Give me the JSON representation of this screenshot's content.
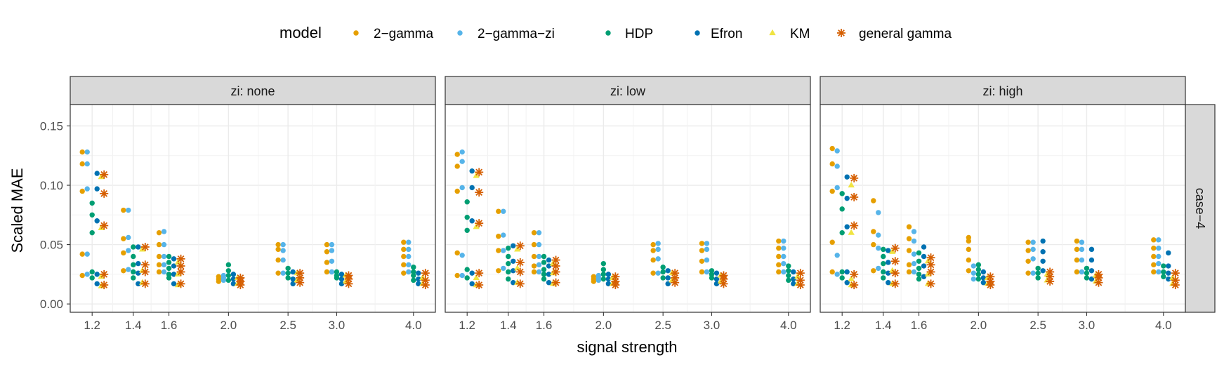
{
  "chart_data": {
    "type": "scatter",
    "xlabel": "signal strength",
    "ylabel": "Scaled MAE",
    "x_ticks": [
      "1.2",
      "1.4",
      "1.6",
      "2.0",
      "2.5",
      "3.0",
      "4.0"
    ],
    "y_ticks": [
      "0.00",
      "0.05",
      "0.10",
      "0.15"
    ],
    "ylim": [
      -0.007,
      0.168
    ],
    "grid": true,
    "legend": {
      "title": "model",
      "placement": "top",
      "entries": [
        "2−gamma",
        "2−gamma−zi",
        "HDP",
        "Efron",
        "KM",
        "general gamma"
      ]
    },
    "row_strip": "case−4",
    "series_colors": {
      "2-gamma": "#E69F00",
      "2-gamma-zi": "#56B4E9",
      "HDP": "#009E73",
      "Efron": "#0072B2",
      "KM": "#F0E442",
      "general gamma": "#D55E00"
    },
    "panels": [
      {
        "label": "zi: none",
        "points": {
          "1.2": {
            "2-gamma": [
              0.128,
              0.118,
              0.095,
              0.042,
              0.024
            ],
            "2-gamma-zi": [
              0.128,
              0.118,
              0.097,
              0.042,
              0.025
            ],
            "HDP": [
              0.085,
              0.075,
              0.06,
              0.027,
              0.022
            ],
            "Efron": [
              0.11,
              0.097,
              0.07,
              0.025,
              0.017
            ],
            "KM": [
              0.107,
              0.064,
              0.023,
              0.015
            ],
            "general gamma": [
              0.109,
              0.093,
              0.066,
              0.025,
              0.016
            ]
          },
          "1.4": {
            "2-gamma": [
              0.079,
              0.055,
              0.043,
              0.028
            ],
            "2-gamma-zi": [
              0.079,
              0.056,
              0.045,
              0.029
            ],
            "HDP": [
              0.048,
              0.04,
              0.033,
              0.027,
              0.022
            ],
            "Efron": [
              0.048,
              0.034,
              0.026,
              0.017
            ],
            "KM": [
              0.046,
              0.028,
              0.018
            ],
            "general gamma": [
              0.048,
              0.033,
              0.027,
              0.017
            ]
          },
          "1.6": {
            "2-gamma": [
              0.06,
              0.05,
              0.04,
              0.033,
              0.027
            ],
            "2-gamma-zi": [
              0.061,
              0.05,
              0.04,
              0.033,
              0.027
            ],
            "HDP": [
              0.04,
              0.035,
              0.03,
              0.025,
              0.022
            ],
            "Efron": [
              0.038,
              0.032,
              0.025,
              0.017
            ],
            "KM": [
              0.035,
              0.025,
              0.016
            ],
            "general gamma": [
              0.038,
              0.032,
              0.027,
              0.017
            ]
          },
          "2.0": {
            "2-gamma": [
              0.023,
              0.021,
              0.019
            ],
            "2-gamma-zi": [
              0.024,
              0.022,
              0.02
            ],
            "HDP": [
              0.033,
              0.028,
              0.024,
              0.02
            ],
            "Efron": [
              0.025,
              0.021,
              0.017
            ],
            "KM": [
              0.022,
              0.017
            ],
            "general gamma": [
              0.022,
              0.019,
              0.016
            ]
          },
          "2.5": {
            "2-gamma": [
              0.05,
              0.046,
              0.037,
              0.026
            ],
            "2-gamma-zi": [
              0.05,
              0.045,
              0.037,
              0.026
            ],
            "HDP": [
              0.03,
              0.026,
              0.022
            ],
            "Efron": [
              0.027,
              0.021,
              0.017
            ],
            "KM": [
              0.026,
              0.02
            ],
            "general gamma": [
              0.026,
              0.022,
              0.018
            ]
          },
          "3.0": {
            "2-gamma": [
              0.05,
              0.044,
              0.035,
              0.027
            ],
            "2-gamma-zi": [
              0.05,
              0.045,
              0.036,
              0.027
            ],
            "HDP": [
              0.027,
              0.024,
              0.022
            ],
            "Efron": [
              0.025,
              0.021,
              0.017
            ],
            "KM": [
              0.024,
              0.019
            ],
            "general gamma": [
              0.024,
              0.021,
              0.017
            ]
          },
          "4.0": {
            "2-gamma": [
              0.052,
              0.046,
              0.04,
              0.033,
              0.026
            ],
            "2-gamma-zi": [
              0.052,
              0.046,
              0.04,
              0.033,
              0.027
            ],
            "HDP": [
              0.031,
              0.027,
              0.024,
              0.02
            ],
            "Efron": [
              0.026,
              0.021,
              0.017
            ],
            "KM": [
              0.022,
              0.017
            ],
            "general gamma": [
              0.026,
              0.02,
              0.016
            ]
          }
        }
      },
      {
        "label": "zi: low",
        "points": {
          "1.2": {
            "2-gamma": [
              0.126,
              0.116,
              0.095,
              0.043,
              0.024
            ],
            "2-gamma-zi": [
              0.128,
              0.12,
              0.098,
              0.041,
              0.024
            ],
            "HDP": [
              0.086,
              0.073,
              0.062,
              0.029,
              0.022
            ],
            "Efron": [
              0.112,
              0.098,
              0.07,
              0.026,
              0.017
            ],
            "KM": [
              0.108,
              0.065,
              0.022,
              0.016
            ],
            "general gamma": [
              0.111,
              0.094,
              0.068,
              0.026,
              0.016
            ]
          },
          "1.4": {
            "2-gamma": [
              0.078,
              0.057,
              0.045,
              0.028
            ],
            "2-gamma-zi": [
              0.078,
              0.058,
              0.045,
              0.03
            ],
            "HDP": [
              0.047,
              0.04,
              0.034,
              0.027,
              0.021
            ],
            "Efron": [
              0.049,
              0.036,
              0.028,
              0.018
            ],
            "KM": [
              0.046,
              0.03,
              0.018
            ],
            "general gamma": [
              0.049,
              0.035,
              0.027,
              0.017
            ]
          },
          "1.6": {
            "2-gamma": [
              0.06,
              0.05,
              0.04,
              0.032,
              0.027
            ],
            "2-gamma-zi": [
              0.06,
              0.05,
              0.04,
              0.033,
              0.027
            ],
            "HDP": [
              0.04,
              0.035,
              0.029,
              0.025,
              0.021
            ],
            "Efron": [
              0.037,
              0.032,
              0.025,
              0.018
            ],
            "KM": [
              0.034,
              0.026,
              0.017
            ],
            "general gamma": [
              0.037,
              0.032,
              0.027,
              0.018
            ]
          },
          "2.0": {
            "2-gamma": [
              0.023,
              0.021,
              0.019
            ],
            "2-gamma-zi": [
              0.024,
              0.022,
              0.02
            ],
            "HDP": [
              0.034,
              0.029,
              0.025,
              0.021
            ],
            "Efron": [
              0.025,
              0.021,
              0.017
            ],
            "KM": [
              0.022,
              0.017
            ],
            "general gamma": [
              0.023,
              0.019,
              0.016
            ]
          },
          "2.5": {
            "2-gamma": [
              0.05,
              0.045,
              0.037,
              0.026
            ],
            "2-gamma-zi": [
              0.051,
              0.046,
              0.038,
              0.026
            ],
            "HDP": [
              0.031,
              0.027,
              0.022
            ],
            "Efron": [
              0.028,
              0.022,
              0.017
            ],
            "KM": [
              0.026,
              0.02
            ],
            "general gamma": [
              0.026,
              0.022,
              0.018
            ]
          },
          "3.0": {
            "2-gamma": [
              0.051,
              0.045,
              0.036,
              0.027
            ],
            "2-gamma-zi": [
              0.051,
              0.046,
              0.037,
              0.027
            ],
            "HDP": [
              0.028,
              0.025,
              0.022
            ],
            "Efron": [
              0.026,
              0.021,
              0.017
            ],
            "KM": [
              0.024,
              0.019
            ],
            "general gamma": [
              0.024,
              0.021,
              0.017
            ]
          },
          "4.0": {
            "2-gamma": [
              0.053,
              0.047,
              0.04,
              0.033,
              0.027
            ],
            "2-gamma-zi": [
              0.053,
              0.047,
              0.04,
              0.034,
              0.027
            ],
            "HDP": [
              0.032,
              0.028,
              0.024,
              0.02
            ],
            "Efron": [
              0.027,
              0.021,
              0.017
            ],
            "KM": [
              0.023,
              0.017
            ],
            "general gamma": [
              0.026,
              0.02,
              0.016
            ]
          }
        }
      },
      {
        "label": "zi: high",
        "points": {
          "1.2": {
            "2-gamma": [
              0.131,
              0.118,
              0.095,
              0.052,
              0.027
            ],
            "2-gamma-zi": [
              0.129,
              0.116,
              0.098,
              0.041,
              0.025
            ],
            "HDP": [
              0.093,
              0.08,
              0.06,
              0.027,
              0.022
            ],
            "Efron": [
              0.107,
              0.089,
              0.065,
              0.027,
              0.018
            ],
            "KM": [
              0.1,
              0.06,
              0.021,
              0.016
            ],
            "general gamma": [
              0.106,
              0.09,
              0.066,
              0.025,
              0.016
            ]
          },
          "1.4": {
            "2-gamma": [
              0.087,
              0.061,
              0.05,
              0.028
            ],
            "2-gamma-zi": [
              0.077,
              0.058,
              0.047,
              0.03
            ],
            "HDP": [
              0.046,
              0.04,
              0.034,
              0.027,
              0.022
            ],
            "Efron": [
              0.045,
              0.035,
              0.026,
              0.018
            ],
            "KM": [
              0.044,
              0.028,
              0.017
            ],
            "general gamma": [
              0.047,
              0.036,
              0.026,
              0.017
            ]
          },
          "1.6": {
            "2-gamma": [
              0.065,
              0.055,
              0.045,
              0.033,
              0.027
            ],
            "2-gamma-zi": [
              0.061,
              0.053,
              0.042,
              0.034,
              0.027
            ],
            "HDP": [
              0.043,
              0.036,
              0.03,
              0.025,
              0.021
            ],
            "Efron": [
              0.048,
              0.04,
              0.032,
              0.023
            ],
            "KM": [
              0.036,
              0.025,
              0.017
            ],
            "general gamma": [
              0.039,
              0.033,
              0.027,
              0.017
            ]
          },
          "2.0": {
            "2-gamma": [
              0.056,
              0.053,
              0.046,
              0.037,
              0.028
            ],
            "2-gamma-zi": [
              0.032,
              0.026,
              0.021
            ],
            "HDP": [
              0.033,
              0.029,
              0.025,
              0.021
            ],
            "Efron": [
              0.027,
              0.022,
              0.018
            ],
            "KM": [
              0.022,
              0.017
            ],
            "general gamma": [
              0.023,
              0.019,
              0.016
            ]
          },
          "2.5": {
            "2-gamma": [
              0.052,
              0.045,
              0.036,
              0.026
            ],
            "2-gamma-zi": [
              0.052,
              0.046,
              0.038,
              0.026
            ],
            "HDP": [
              0.03,
              0.026,
              0.022
            ],
            "Efron": [
              0.053,
              0.044,
              0.036,
              0.028
            ],
            "KM": [
              0.025,
              0.02
            ],
            "general gamma": [
              0.027,
              0.023,
              0.019
            ]
          },
          "3.0": {
            "2-gamma": [
              0.053,
              0.046,
              0.037,
              0.027
            ],
            "2-gamma-zi": [
              0.052,
              0.046,
              0.037,
              0.027
            ],
            "HDP": [
              0.03,
              0.026,
              0.022
            ],
            "Efron": [
              0.046,
              0.037,
              0.028,
              0.021
            ],
            "KM": [
              0.024,
              0.019
            ],
            "general gamma": [
              0.025,
              0.022,
              0.018
            ]
          },
          "4.0": {
            "2-gamma": [
              0.054,
              0.047,
              0.04,
              0.033,
              0.027
            ],
            "2-gamma-zi": [
              0.054,
              0.047,
              0.04,
              0.034,
              0.027
            ],
            "HDP": [
              0.032,
              0.027,
              0.023
            ],
            "Efron": [
              0.043,
              0.032,
              0.026,
              0.021
            ],
            "KM": [
              0.022,
              0.017
            ],
            "general gamma": [
              0.026,
              0.02,
              0.016
            ]
          }
        }
      }
    ]
  }
}
